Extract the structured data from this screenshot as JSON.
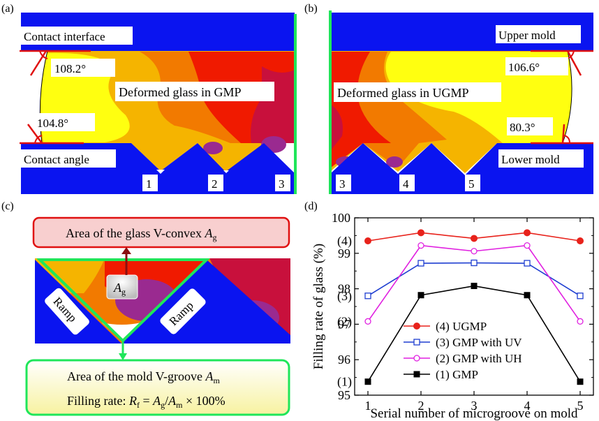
{
  "panel_a": {
    "tag": "(a)",
    "contact_interface": "Contact interface",
    "angle_top": "108.2°",
    "title": "Deformed glass in GMP",
    "angle_bottom": "104.8°",
    "contact_angle": "Contact angle",
    "groove_numbers": [
      "1",
      "2",
      "3"
    ]
  },
  "panel_b": {
    "tag": "(b)",
    "upper_mold": "Upper mold",
    "angle_top": "106.6°",
    "title": "Deformed glass in UGMP",
    "angle_bottom": "80.3°",
    "lower_mold": "Lower mold",
    "groove_numbers": [
      "3",
      "4",
      "5"
    ]
  },
  "panel_c": {
    "tag": "(c)",
    "area_glass_text": "Area of the glass V-convex ",
    "area_glass_symbol": "A",
    "area_glass_sub": "g",
    "ag_symbol": "A",
    "ag_sub": "g",
    "ramp_left": "Ramp",
    "ramp_right": "Ramp",
    "area_mold_text": "Area of the mold V-groove ",
    "area_mold_symbol": "A",
    "area_mold_sub": "m",
    "filling_prefix": "Filling rate: ",
    "filling_R": "R",
    "filling_R_sub": "f",
    "filling_eq": " = ",
    "filling_A1": "A",
    "filling_A1_sub": "g",
    "filling_slash": "/",
    "filling_A2": "A",
    "filling_A2_sub": "m",
    "filling_tail": " × 100%"
  },
  "panel_d": {
    "tag": "(d)"
  },
  "chart_data": {
    "type": "line",
    "xlabel": "Serial number of microgroove on mold",
    "ylabel": "Filling rate of glass (%)",
    "x": [
      1,
      2,
      3,
      4,
      5
    ],
    "xlim": [
      0.75,
      5.25
    ],
    "ylim": [
      95,
      100
    ],
    "yticks": [
      95,
      96,
      97,
      98,
      99,
      100
    ],
    "legend_position": "center-right",
    "series": [
      {
        "name": "(4) UGMP",
        "tag": "(4)",
        "color": "#e8221b",
        "marker": "filled-circle",
        "values": [
          99.35,
          99.58,
          99.42,
          99.58,
          99.35
        ]
      },
      {
        "name": "(3) GMP with UV",
        "tag": "(3)",
        "color": "#1f3fd1",
        "marker": "open-square",
        "values": [
          97.8,
          98.72,
          98.73,
          98.72,
          97.8
        ]
      },
      {
        "name": "(2) GMP with UH",
        "tag": "(2)",
        "color": "#e020e0",
        "marker": "open-circle",
        "values": [
          97.08,
          99.22,
          99.06,
          99.22,
          97.08
        ]
      },
      {
        "name": "(1) GMP",
        "tag": "(1)",
        "color": "#000000",
        "marker": "filled-square",
        "values": [
          95.38,
          97.82,
          98.08,
          97.82,
          95.38
        ]
      }
    ]
  },
  "colors": {
    "mold": "#0a14f0",
    "glass_bright": "#ffff10",
    "glass_mid": "#f5b400",
    "glass_orange": "#f27a00",
    "glass_red": "#f01a00",
    "glass_crimson": "#c8103c",
    "glass_purple": "#9a2a90",
    "boundary_green": "#1fe65a",
    "contact_red": "#e01010",
    "box_pink": "#f8cfcf",
    "box_yellow": "#fafac0"
  }
}
